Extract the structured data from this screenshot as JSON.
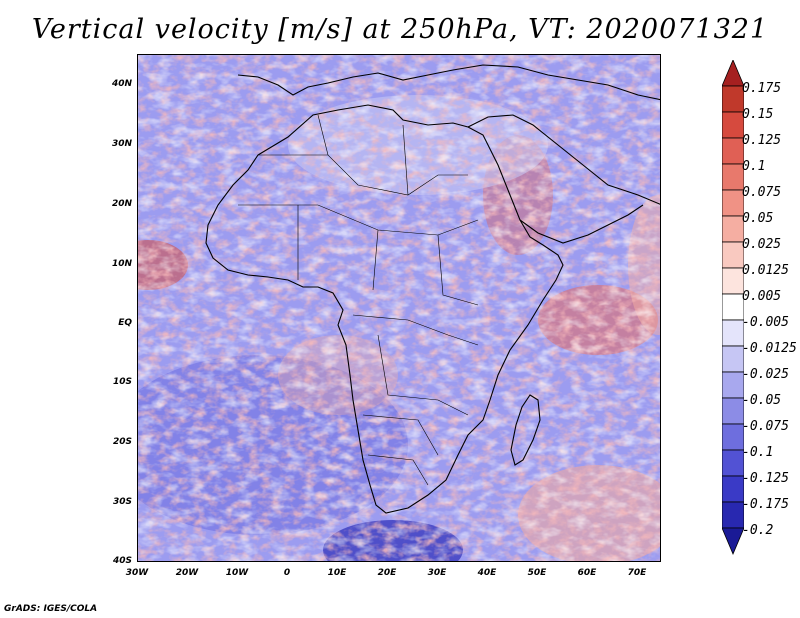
{
  "title": "Vertical velocity [m/s] at 250hPa, VT: 2020071321",
  "credit": "GrADS: IGES/COLA",
  "map": {
    "variable": "Vertical velocity",
    "units": "m/s",
    "level": "250hPa",
    "valid_time": "2020071321",
    "lat_labels": [
      "40N",
      "30N",
      "20N",
      "10N",
      "EQ",
      "10S",
      "20S",
      "30S",
      "40S"
    ],
    "lon_labels": [
      "30W",
      "20W",
      "10W",
      "0",
      "10E",
      "20E",
      "30E",
      "40E",
      "50E",
      "60E",
      "70E"
    ]
  },
  "colorbar": {
    "labels": [
      "0.175",
      "0.15",
      "0.125",
      "0.1",
      "0.075",
      "0.05",
      "0.025",
      "0.0125",
      "0.005",
      "-0.005",
      "-0.0125",
      "-0.025",
      "-0.05",
      "-0.075",
      "-0.1",
      "-0.125",
      "-0.175",
      "-0.2"
    ],
    "colors": [
      "#a52020",
      "#c0392b",
      "#d64a3e",
      "#e06055",
      "#e8796c",
      "#f09285",
      "#f5aea2",
      "#f9c9c0",
      "#fde4de",
      "#ffffff",
      "#e4e4fb",
      "#c6c6f4",
      "#a8a8ee",
      "#8c8ce6",
      "#6e6ede",
      "#5252d4",
      "#3a3ac6",
      "#2828b0",
      "#1a1a96"
    ]
  }
}
